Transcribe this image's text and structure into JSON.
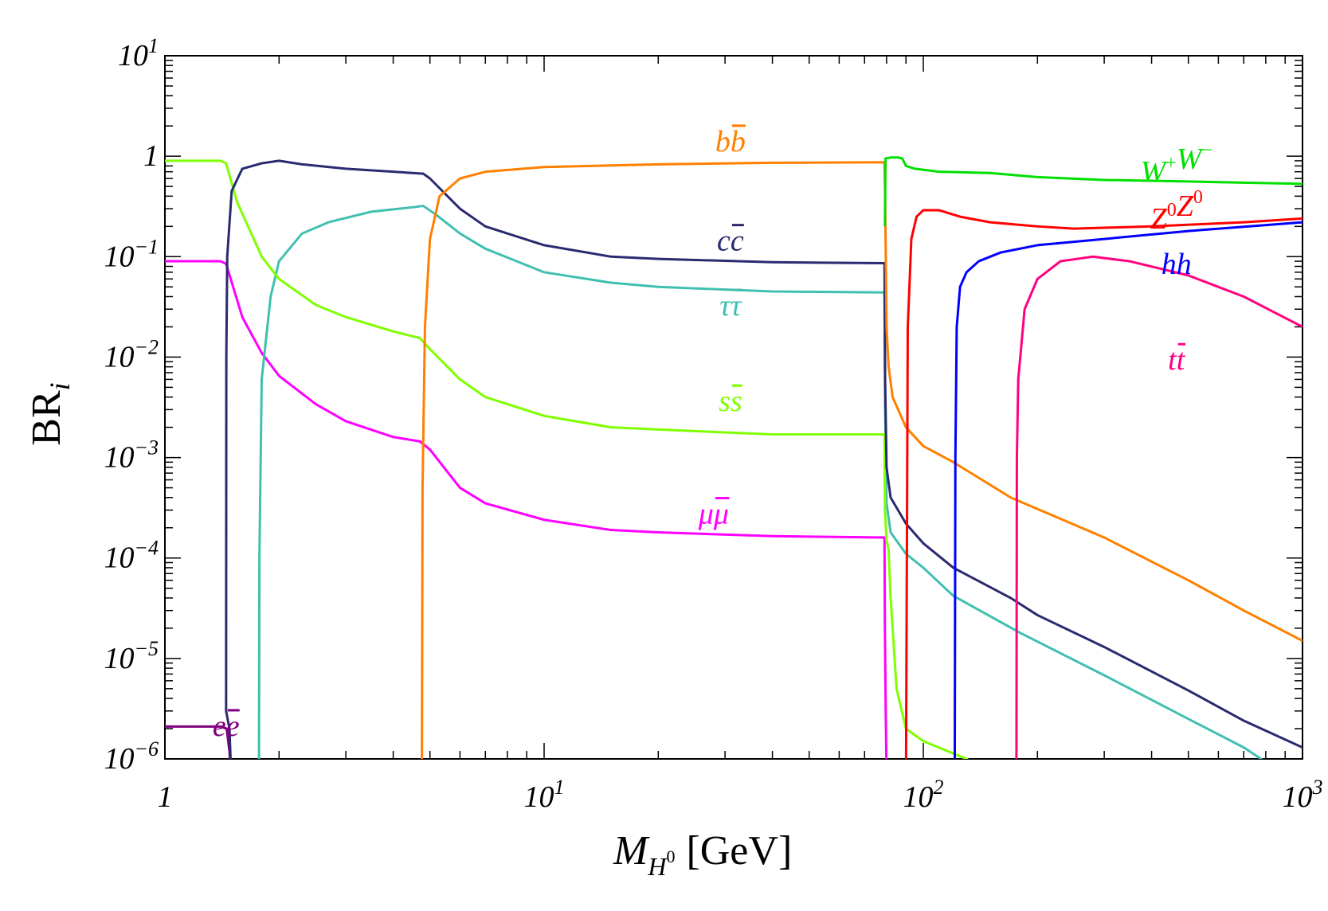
{
  "chart_data": {
    "type": "line",
    "title": "",
    "xlabel": {
      "main": "M",
      "sub": "H",
      "sup": "0",
      "unit": "[GeV]"
    },
    "ylabel": {
      "main": "BR",
      "sub": "i"
    },
    "xscale": "log",
    "yscale": "log",
    "xlim": [
      1,
      1000
    ],
    "ylim": [
      1e-06,
      10
    ],
    "grid": false,
    "x_ticks": [
      {
        "value": 1,
        "base": "1",
        "exp": ""
      },
      {
        "value": 10,
        "base": "10",
        "exp": "1"
      },
      {
        "value": 100,
        "base": "10",
        "exp": "2"
      },
      {
        "value": 1000,
        "base": "10",
        "exp": "3"
      }
    ],
    "y_ticks": [
      {
        "value": 10,
        "base": "10",
        "exp": "1"
      },
      {
        "value": 1,
        "base": "1",
        "exp": ""
      },
      {
        "value": 0.1,
        "base": "10",
        "exp": "−1"
      },
      {
        "value": 0.01,
        "base": "10",
        "exp": "−2"
      },
      {
        "value": 0.001,
        "base": "10",
        "exp": "−3"
      },
      {
        "value": 0.0001,
        "base": "10",
        "exp": "−4"
      },
      {
        "value": 1e-05,
        "base": "10",
        "exp": "−5"
      },
      {
        "value": 1e-06,
        "base": "10",
        "exp": "−6"
      }
    ],
    "series": [
      {
        "name": "ee",
        "label_parts": [
          "e",
          "e"
        ],
        "label_bar": [
          1
        ],
        "label_at": [
          1.45,
          1.7e-06
        ],
        "color": "#800080",
        "points": [
          [
            1.0,
            2.1e-06
          ],
          [
            1.2,
            2.1e-06
          ],
          [
            1.4,
            2.1e-06
          ],
          [
            1.455,
            2e-06
          ],
          [
            1.48,
            1.2e-06
          ],
          [
            1.5,
            5e-07
          ]
        ]
      },
      {
        "name": "mumu",
        "label_parts": [
          "μ",
          "μ"
        ],
        "label_bar": [
          1
        ],
        "label_at": [
          28,
          0.00022
        ],
        "color": "#ff00ff",
        "points": [
          [
            1.0,
            0.09
          ],
          [
            1.2,
            0.09
          ],
          [
            1.4,
            0.09
          ],
          [
            1.45,
            0.085
          ],
          [
            1.6,
            0.025
          ],
          [
            1.8,
            0.011
          ],
          [
            2.0,
            0.0065
          ],
          [
            2.5,
            0.0034
          ],
          [
            3.0,
            0.0023
          ],
          [
            4.0,
            0.0016
          ],
          [
            4.7,
            0.00145
          ],
          [
            5.0,
            0.0012
          ],
          [
            6.0,
            0.0005
          ],
          [
            7.0,
            0.00035
          ],
          [
            10.0,
            0.00024
          ],
          [
            15.0,
            0.00019
          ],
          [
            20.0,
            0.00018
          ],
          [
            40.0,
            0.000165
          ],
          [
            79.0,
            0.00016
          ],
          [
            79.2,
            2e-05
          ],
          [
            79.6,
            3e-06
          ],
          [
            80.0,
            7e-07
          ]
        ]
      },
      {
        "name": "ee_dummy_guard",
        "label_parts": [],
        "label_bar": [],
        "label_at": [
          1,
          1
        ],
        "color": "#ffffff",
        "points": []
      },
      {
        "name": "gamma_gamma_placeholder",
        "label_parts": [],
        "label_bar": [],
        "label_at": [
          1,
          1
        ],
        "color": "#ffffff",
        "points": []
      },
      {
        "name": "tautau",
        "label_parts": [
          "τ",
          "τ"
        ],
        "label_bar": [
          1
        ],
        "label_at": [
          31,
          0.026
        ],
        "color": "#40c0b0",
        "points": [
          [
            1.77,
            5e-07
          ],
          [
            1.775,
            0.0001
          ],
          [
            1.8,
            0.006
          ],
          [
            1.9,
            0.04
          ],
          [
            2.0,
            0.09
          ],
          [
            2.3,
            0.17
          ],
          [
            2.7,
            0.22
          ],
          [
            3.5,
            0.28
          ],
          [
            4.5,
            0.31
          ],
          [
            4.8,
            0.32
          ],
          [
            5.2,
            0.26
          ],
          [
            6.0,
            0.17
          ],
          [
            7.0,
            0.12
          ],
          [
            10.0,
            0.07
          ],
          [
            15.0,
            0.055
          ],
          [
            20.0,
            0.05
          ],
          [
            40.0,
            0.045
          ],
          [
            79.0,
            0.044
          ],
          [
            79.3,
            0.003
          ],
          [
            80.0,
            0.00035
          ],
          [
            82.0,
            0.00018
          ],
          [
            90.0,
            0.00011
          ],
          [
            100.0,
            8e-05
          ],
          [
            120.0,
            4.2e-05
          ],
          [
            180.0,
            1.8e-05
          ],
          [
            300.0,
            6.8e-06
          ],
          [
            500.0,
            2.5e-06
          ],
          [
            700.0,
            1.3e-06
          ],
          [
            850.0,
            8e-07
          ]
        ]
      },
      {
        "name": "ss",
        "label_parts": [
          "s",
          "s"
        ],
        "label_bar": [
          1
        ],
        "label_at": [
          31,
          0.0029
        ],
        "color": "#80ff00",
        "points": [
          [
            1.0,
            0.9
          ],
          [
            1.2,
            0.9
          ],
          [
            1.4,
            0.9
          ],
          [
            1.45,
            0.85
          ],
          [
            1.55,
            0.35
          ],
          [
            1.8,
            0.1
          ],
          [
            2.0,
            0.06
          ],
          [
            2.5,
            0.033
          ],
          [
            3.0,
            0.025
          ],
          [
            4.0,
            0.018
          ],
          [
            4.7,
            0.0155
          ],
          [
            5.0,
            0.012
          ],
          [
            6.0,
            0.006
          ],
          [
            7.0,
            0.004
          ],
          [
            10.0,
            0.0026
          ],
          [
            15.0,
            0.002
          ],
          [
            20.0,
            0.0019
          ],
          [
            40.0,
            0.0017
          ],
          [
            79.0,
            0.0017
          ],
          [
            79.2,
            0.0003
          ],
          [
            80.0,
            0.00015
          ],
          [
            81.0,
            0.00012
          ],
          [
            82.0,
            4e-05
          ],
          [
            85.0,
            5e-06
          ],
          [
            90.0,
            2e-06
          ],
          [
            100.0,
            1.5e-06
          ],
          [
            130.0,
            1e-06
          ],
          [
            155.0,
            7e-07
          ]
        ]
      },
      {
        "name": "cc",
        "label_parts": [
          "c",
          "c"
        ],
        "label_bar": [
          1
        ],
        "label_at": [
          31,
          0.115
        ],
        "color": "#2a2a70",
        "points": [
          [
            1.5,
            5e-07
          ],
          [
            1.48,
            2e-06
          ],
          [
            1.45,
            3e-06
          ],
          [
            1.452,
            0.01
          ],
          [
            1.46,
            0.1
          ],
          [
            1.5,
            0.45
          ],
          [
            1.6,
            0.75
          ],
          [
            1.8,
            0.85
          ],
          [
            2.0,
            0.9
          ],
          [
            2.3,
            0.83
          ],
          [
            3.0,
            0.75
          ],
          [
            4.0,
            0.7
          ],
          [
            4.8,
            0.67
          ],
          [
            5.0,
            0.6
          ],
          [
            6.0,
            0.3
          ],
          [
            7.0,
            0.2
          ],
          [
            10.0,
            0.13
          ],
          [
            15.0,
            0.1
          ],
          [
            20.0,
            0.095
          ],
          [
            40.0,
            0.088
          ],
          [
            79.0,
            0.086
          ],
          [
            79.3,
            0.006
          ],
          [
            80.0,
            0.0008
          ],
          [
            82.0,
            0.0004
          ],
          [
            90.0,
            0.00022
          ],
          [
            100.0,
            0.00014
          ],
          [
            120.0,
            8e-05
          ],
          [
            170.0,
            4e-05
          ],
          [
            200.0,
            2.7e-05
          ],
          [
            300.0,
            1.3e-05
          ],
          [
            500.0,
            4.8e-06
          ],
          [
            700.0,
            2.4e-06
          ],
          [
            1000.0,
            1.3e-06
          ]
        ]
      },
      {
        "name": "bb",
        "label_parts": [
          "b",
          "b"
        ],
        "label_bar": [
          1
        ],
        "label_at": [
          31,
          1.12
        ],
        "color": "#ff8000",
        "points": [
          [
            4.76,
            5e-07
          ],
          [
            4.78,
            0.0005
          ],
          [
            4.85,
            0.02
          ],
          [
            5.0,
            0.15
          ],
          [
            5.3,
            0.4
          ],
          [
            6.0,
            0.6
          ],
          [
            7.0,
            0.7
          ],
          [
            10.0,
            0.78
          ],
          [
            20.0,
            0.83
          ],
          [
            40.0,
            0.86
          ],
          [
            79.0,
            0.87
          ],
          [
            79.3,
            0.4
          ],
          [
            80.0,
            0.02
          ],
          [
            81.0,
            0.008
          ],
          [
            83.0,
            0.004
          ],
          [
            90.0,
            0.002
          ],
          [
            100.0,
            0.0013
          ],
          [
            120.0,
            0.0009
          ],
          [
            170.0,
            0.0004
          ],
          [
            300.0,
            0.00016
          ],
          [
            500.0,
            6e-05
          ],
          [
            700.0,
            3e-05
          ],
          [
            1000.0,
            1.5e-05
          ]
        ]
      },
      {
        "name": "WW",
        "label_parts": [
          "W",
          "W"
        ],
        "label_sup": [
          "+",
          "−"
        ],
        "label_at": [
          465,
          0.56
        ],
        "color": "#00e000",
        "points": [
          [
            79.2,
            0.2
          ],
          [
            79.5,
            0.95
          ],
          [
            82.0,
            0.97
          ],
          [
            86.0,
            0.97
          ],
          [
            88.0,
            0.95
          ],
          [
            90.0,
            0.8
          ],
          [
            95.0,
            0.75
          ],
          [
            110.0,
            0.7
          ],
          [
            150.0,
            0.68
          ],
          [
            200.0,
            0.62
          ],
          [
            300.0,
            0.58
          ],
          [
            500.0,
            0.56
          ],
          [
            1000.0,
            0.53
          ]
        ]
      },
      {
        "name": "ZZ",
        "label_parts": [
          "Z",
          "Z"
        ],
        "label_sup": [
          "0",
          "0"
        ],
        "label_at": [
          465,
          0.19
        ],
        "color": "#ff0000",
        "points": [
          [
            90.0,
            5e-07
          ],
          [
            90.5,
            0.0001
          ],
          [
            91.0,
            0.02
          ],
          [
            93.0,
            0.15
          ],
          [
            96.0,
            0.25
          ],
          [
            100.0,
            0.29
          ],
          [
            110.0,
            0.29
          ],
          [
            125.0,
            0.25
          ],
          [
            150.0,
            0.22
          ],
          [
            200.0,
            0.2
          ],
          [
            250.0,
            0.19
          ],
          [
            400.0,
            0.2
          ],
          [
            700.0,
            0.22
          ],
          [
            1000.0,
            0.24
          ]
        ]
      },
      {
        "name": "hh",
        "label_parts": [
          "h",
          "h"
        ],
        "label_at": [
          465,
          0.067
        ],
        "color": "#0000ff",
        "points": [
          [
            121.0,
            5e-07
          ],
          [
            121.5,
            0.001
          ],
          [
            122.5,
            0.02
          ],
          [
            125.0,
            0.05
          ],
          [
            130.0,
            0.07
          ],
          [
            140.0,
            0.09
          ],
          [
            160.0,
            0.11
          ],
          [
            200.0,
            0.13
          ],
          [
            300.0,
            0.15
          ],
          [
            500.0,
            0.18
          ],
          [
            1000.0,
            0.22
          ]
        ]
      },
      {
        "name": "tt",
        "label_parts": [
          "t",
          "t"
        ],
        "label_bar": [
          1
        ],
        "label_at": [
          465,
          0.0075
        ],
        "color": "#ff0080",
        "points": [
          [
            176.0,
            5e-07
          ],
          [
            176.5,
            0.001
          ],
          [
            178.0,
            0.006
          ],
          [
            185.0,
            0.03
          ],
          [
            200.0,
            0.06
          ],
          [
            230.0,
            0.09
          ],
          [
            280.0,
            0.1
          ],
          [
            350.0,
            0.09
          ],
          [
            500.0,
            0.065
          ],
          [
            700.0,
            0.04
          ],
          [
            1000.0,
            0.02
          ]
        ]
      }
    ]
  }
}
